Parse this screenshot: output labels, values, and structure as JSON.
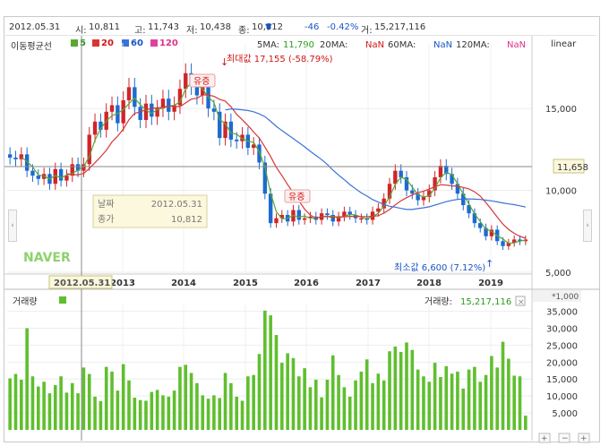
{
  "stock_header": {
    "date": "2012.05.31",
    "open_label": "시:",
    "open": "10,811",
    "high_label": "고:",
    "high": "11,743",
    "low_label": "저:",
    "low": "10,438",
    "close_label": "종:",
    "close": "10,812",
    "change_arrow": "▼",
    "change": "-46",
    "change_pct": "-0.42%",
    "volume_label": "거:",
    "volume": "15,217,116"
  },
  "ma_legend": {
    "label": "이동평균선",
    "items": [
      {
        "period": "5",
        "color": "#5aa832"
      },
      {
        "period": "20",
        "color": "#d93434"
      },
      {
        "period": "60",
        "color": "#3a72d8"
      },
      {
        "period": "120",
        "color": "#e040a0"
      }
    ]
  },
  "ma_values": {
    "ma5_label": "5MA:",
    "ma5": "11,790",
    "ma20_label": "20MA:",
    "ma20": "NaN",
    "ma60_label": "60MA:",
    "ma60": "NaN",
    "ma120_label": "120MA:",
    "ma120": "NaN"
  },
  "scale_mode": "linear",
  "crosshair": {
    "date_label": "날짜",
    "date": "2012.05.31",
    "close_label": "종가",
    "close": "10,812",
    "axis_date": "2012.05.31",
    "axis_price": "11,658"
  },
  "watermark": "NAVER",
  "annotations": {
    "max_label": "최대값 17,155 (-58.79%)",
    "min_label": "최소값 6,600 (7.12%)",
    "event_label": "유증"
  },
  "volume_panel": {
    "title": "거래량",
    "current_label": "거래량:",
    "current_value": "15,217,116",
    "unit": "*1,000",
    "close_icon": "×"
  },
  "colors": {
    "up": "#d0252a",
    "down": "#1c6bd0",
    "ma5": "#5aa832",
    "ma20": "#d93434",
    "ma60": "#3a72d8",
    "volume": "#5fbf2e",
    "crosshair_axis_bg": "#fbf8dd"
  },
  "chart_data": [
    {
      "type": "candlestick",
      "period": "monthly",
      "x_tick_labels": [
        "2013",
        "2014",
        "2015",
        "2016",
        "2017",
        "2018",
        "2019"
      ],
      "y_tick_labels": [
        "5,000",
        "10,000",
        "15,000"
      ],
      "ylim": [
        5000,
        19000
      ],
      "grid": true,
      "series": [
        {
          "name": "5MA",
          "color": "#5aa832"
        },
        {
          "name": "20MA",
          "color": "#d93434"
        },
        {
          "name": "60MA",
          "color": "#3a72d8"
        }
      ],
      "annotations": [
        {
          "text": "최대값 17,155 (-58.79%)",
          "value": 17155
        },
        {
          "text": "최소값 6,600 (7.12%)",
          "value": 6600
        }
      ]
    },
    {
      "type": "bar",
      "title": "거래량",
      "y_tick_labels": [
        "5,000",
        "10,000",
        "15,000",
        "20,000",
        "25,000",
        "30,000",
        "35,000"
      ],
      "ylim": [
        0,
        37000
      ],
      "unit": "*1,000"
    }
  ]
}
